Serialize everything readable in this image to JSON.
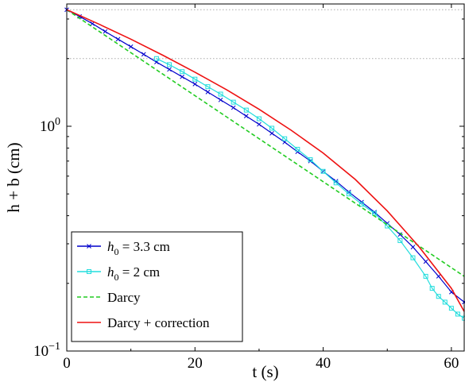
{
  "chart_data": {
    "type": "line",
    "title": "",
    "xlabel": "t (s)",
    "ylabel": "h + b (cm)",
    "xlim": [
      0,
      62
    ],
    "ylim": [
      0.1,
      3.5
    ],
    "yscale": "log",
    "x_ticks": [
      {
        "value": 0,
        "label": "0"
      },
      {
        "value": 20,
        "label": "20"
      },
      {
        "value": 40,
        "label": "40"
      },
      {
        "value": 60,
        "label": "60"
      }
    ],
    "y_ticks": [
      {
        "value": 0.1,
        "base": "10",
        "exp": "−1"
      },
      {
        "value": 1,
        "base": "10",
        "exp": "0"
      }
    ],
    "reference_lines": [
      {
        "y": 3.3,
        "style": "dotted",
        "color": "#aaaaaa"
      },
      {
        "y": 2.0,
        "style": "dotted",
        "color": "#aaaaaa"
      }
    ],
    "legend_position": "bottom-left",
    "series": [
      {
        "name": "h0 = 3.3 cm",
        "legend": {
          "main": "h",
          "sub": "0",
          "rest": " = 3.3 cm"
        },
        "color": "#0000cc",
        "marker": "x",
        "x": [
          0,
          2,
          4,
          6,
          8,
          10,
          12,
          14,
          16,
          18,
          20,
          22,
          24,
          26,
          28,
          30,
          32,
          34,
          36,
          38,
          40,
          42,
          44,
          46,
          48,
          50,
          52,
          54,
          56,
          58,
          60,
          62
        ],
        "y": [
          3.3,
          3.08,
          2.86,
          2.64,
          2.44,
          2.26,
          2.09,
          1.93,
          1.79,
          1.66,
          1.54,
          1.42,
          1.31,
          1.21,
          1.11,
          1.02,
          0.93,
          0.85,
          0.77,
          0.7,
          0.63,
          0.57,
          0.51,
          0.46,
          0.415,
          0.37,
          0.33,
          0.29,
          0.25,
          0.215,
          0.183,
          0.165
        ]
      },
      {
        "name": "h0 = 2 cm",
        "legend": {
          "main": "h",
          "sub": "0",
          "rest": " = 2 cm"
        },
        "color": "#22dddd",
        "marker": "square",
        "x": [
          14,
          16,
          18,
          20,
          22,
          24,
          26,
          28,
          30,
          32,
          34,
          36,
          38,
          40,
          42,
          44,
          46,
          48,
          50,
          52,
          54,
          56,
          57,
          58,
          59,
          60,
          61,
          62
        ],
        "y": [
          2.0,
          1.88,
          1.75,
          1.62,
          1.5,
          1.39,
          1.28,
          1.18,
          1.08,
          0.98,
          0.88,
          0.79,
          0.71,
          0.63,
          0.56,
          0.5,
          0.45,
          0.41,
          0.36,
          0.31,
          0.26,
          0.215,
          0.19,
          0.175,
          0.165,
          0.155,
          0.146,
          0.14
        ]
      },
      {
        "name": "Darcy",
        "legend": {
          "main": "Darcy",
          "sub": "",
          "rest": ""
        },
        "color": "#22cc22",
        "style": "dashed",
        "x": [
          0,
          62
        ],
        "y": [
          3.3,
          0.215
        ]
      },
      {
        "name": "Darcy + correction",
        "legend": {
          "main": "Darcy + correction",
          "sub": "",
          "rest": ""
        },
        "color": "#ee1111",
        "style": "solid",
        "x": [
          0,
          5,
          10,
          15,
          20,
          25,
          30,
          35,
          40,
          45,
          50,
          55,
          60,
          62
        ],
        "y": [
          3.3,
          2.85,
          2.44,
          2.07,
          1.74,
          1.45,
          1.19,
          0.96,
          0.76,
          0.58,
          0.42,
          0.29,
          0.19,
          0.15
        ]
      }
    ]
  }
}
